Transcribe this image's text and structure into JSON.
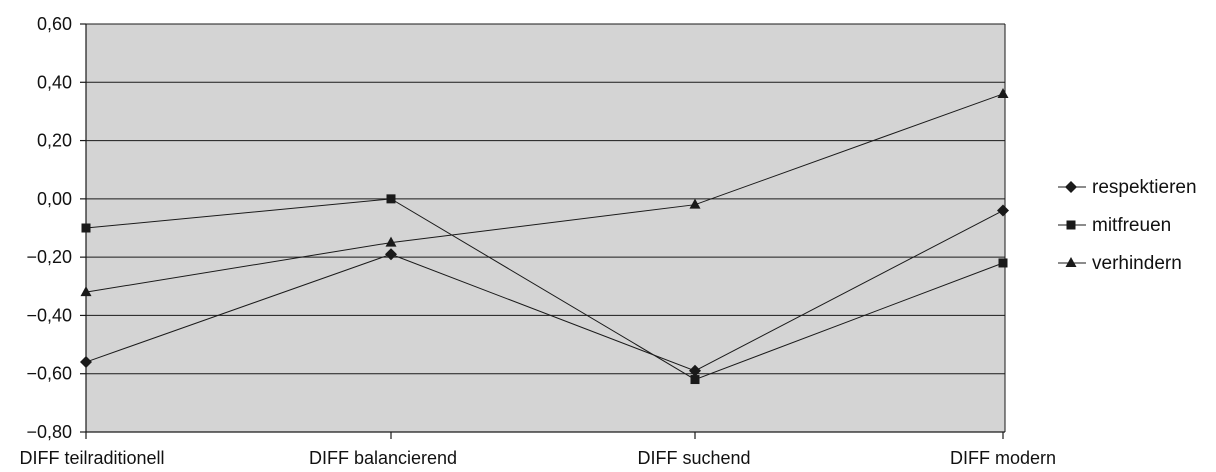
{
  "chart_data": {
    "type": "line",
    "title": "",
    "xlabel": "",
    "ylabel": "",
    "categories": [
      "DIFF teilraditionell",
      "DIFF balancierend",
      "DIFF suchend",
      "DIFF modern"
    ],
    "ylim": [
      -0.8,
      0.6
    ],
    "yticks": [
      -0.8,
      -0.6,
      -0.4,
      -0.2,
      0.0,
      0.2,
      0.4,
      0.6
    ],
    "ytick_labels": [
      "−0,80",
      "−0,60",
      "−0,40",
      "−0,20",
      "0,00",
      "0,20",
      "0,40",
      "0,60"
    ],
    "grid": true,
    "plot_background": "#d4d4d4",
    "line_color": "#1a1a1a",
    "legend_position": "right",
    "series": [
      {
        "name": "respektieren",
        "marker": "diamond",
        "values": [
          -0.56,
          -0.19,
          -0.59,
          -0.04
        ]
      },
      {
        "name": "mitfreuen",
        "marker": "square",
        "values": [
          -0.1,
          0.0,
          -0.62,
          -0.22
        ]
      },
      {
        "name": "verhindern",
        "marker": "triangle",
        "values": [
          -0.32,
          -0.15,
          -0.02,
          0.36
        ]
      }
    ]
  }
}
